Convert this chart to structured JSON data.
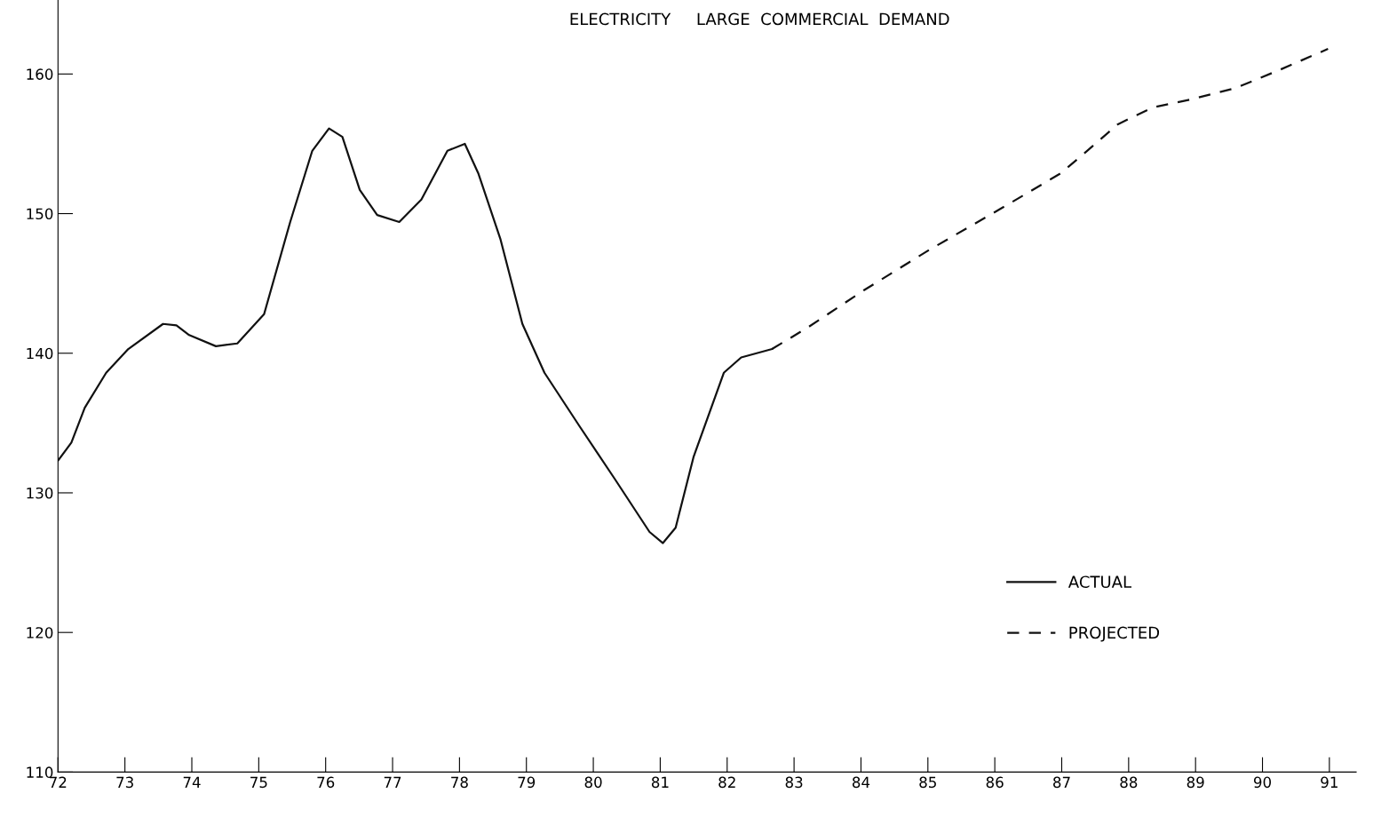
{
  "chart_data": {
    "type": "line",
    "title": "ELECTRICITY     LARGE  COMMERCIAL  DEMAND",
    "series": [
      {
        "name": "ACTUAL",
        "color": "#111111",
        "line_style": "solid",
        "x": [
          72,
          72.2,
          72.4,
          72.72,
          73.05,
          73.57,
          73.77,
          73.96,
          74.36,
          74.68,
          75.08,
          75.47,
          75.8,
          76.05,
          76.25,
          76.51,
          76.77,
          77.1,
          77.43,
          77.82,
          78.08,
          78.28,
          78.61,
          78.94,
          79.27,
          79.79,
          80.32,
          80.84,
          81.04,
          81.23,
          81.5,
          81.95,
          82.21,
          82.67
        ],
        "values": [
          132.3,
          133.6,
          136.1,
          138.6,
          140.3,
          142.1,
          142.0,
          141.3,
          140.5,
          140.7,
          142.8,
          149.4,
          154.5,
          156.1,
          155.5,
          151.7,
          149.9,
          149.4,
          151.0,
          154.5,
          155.0,
          152.9,
          148.2,
          142.1,
          138.6,
          134.8,
          131.0,
          127.2,
          126.4,
          127.5,
          132.6,
          138.6,
          139.7,
          140.3
        ]
      },
      {
        "name": "PROJECTED",
        "color": "#111111",
        "line_style": "dashed",
        "x": [
          82.67,
          83.19,
          84.04,
          85.02,
          86.07,
          86.99,
          87.38,
          87.84,
          88.36,
          88.95,
          89.6,
          90.26,
          90.98
        ],
        "values": [
          140.3,
          141.8,
          144.5,
          147.4,
          150.3,
          152.9,
          154.5,
          156.4,
          157.6,
          158.2,
          159.0,
          160.3,
          161.8
        ]
      }
    ],
    "xlim": [
      72,
      91.4
    ],
    "xticks": [
      72,
      73,
      74,
      75,
      76,
      77,
      78,
      79,
      80,
      81,
      82,
      83,
      84,
      85,
      86,
      87,
      88,
      89,
      90,
      91
    ],
    "ylim": [
      110,
      165.3
    ],
    "yticks": [
      110,
      120,
      130,
      140,
      150,
      160
    ],
    "grid": false,
    "legend": "lower right",
    "marker": "none"
  }
}
